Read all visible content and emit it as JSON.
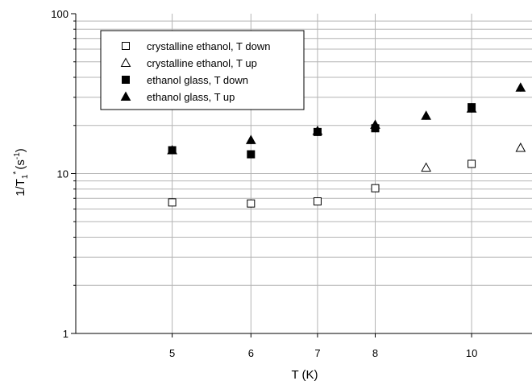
{
  "chart_data": {
    "type": "scatter",
    "xlabel": "T (K)",
    "ylabel": {
      "main": "1/T",
      "sub": "1",
      "sup": "*",
      "rest": "(s",
      "unit_sup": "-1",
      "close": ")"
    },
    "x_scale": "log",
    "y_scale": "log",
    "xlim": [
      4.0,
      11.5
    ],
    "ylim": [
      1,
      100
    ],
    "x_ticks": [
      5,
      6,
      7,
      8,
      10
    ],
    "x_tick_labels": [
      "5",
      "6",
      "7",
      "8",
      "10"
    ],
    "y_ticks": [
      1,
      10,
      100
    ],
    "y_tick_labels": [
      "1",
      "10",
      "100"
    ],
    "grid": true,
    "legend_position": "top-left",
    "series": [
      {
        "name": "crystalline ethanol, T down",
        "marker": "square-open",
        "points": [
          [
            5,
            6.6
          ],
          [
            6,
            6.5
          ],
          [
            7,
            6.7
          ],
          [
            8,
            8.1
          ],
          [
            10,
            11.5
          ]
        ]
      },
      {
        "name": "crystalline ethanol, T up",
        "marker": "triangle-open",
        "points": [
          [
            9.0,
            10.9
          ],
          [
            11.2,
            14.5
          ]
        ]
      },
      {
        "name": "ethanol glass, T down",
        "marker": "square-filled",
        "points": [
          [
            5,
            14.0
          ],
          [
            6,
            13.2
          ],
          [
            7,
            18.2
          ],
          [
            8,
            19.2
          ],
          [
            10,
            26.0
          ]
        ]
      },
      {
        "name": "ethanol glass, T up",
        "marker": "triangle-filled",
        "points": [
          [
            5,
            14.0
          ],
          [
            6,
            16.2
          ],
          [
            7,
            18.5
          ],
          [
            8,
            20.2
          ],
          [
            9.0,
            23.0
          ],
          [
            10,
            25.5
          ],
          [
            11.2,
            34.5
          ]
        ]
      }
    ]
  }
}
